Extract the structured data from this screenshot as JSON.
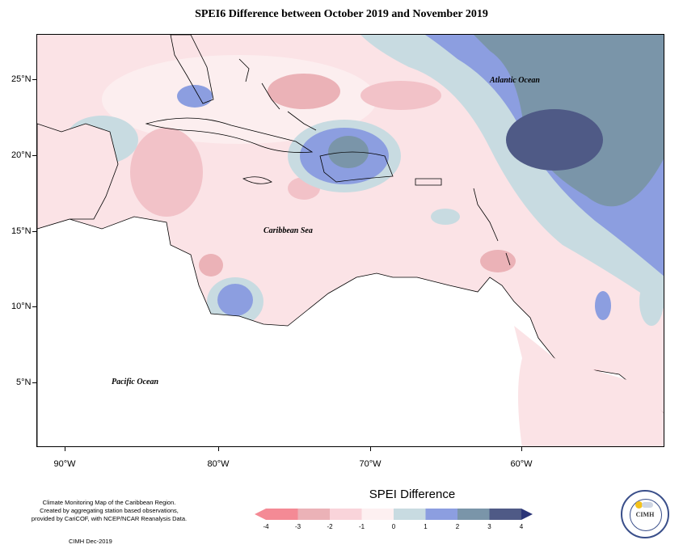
{
  "title": "SPEI6 Difference between October 2019 and November 2019",
  "axes": {
    "lat_labels": [
      "25°N",
      "20°N",
      "15°N",
      "10°N",
      "5°N"
    ],
    "lon_labels": [
      "90°W",
      "80°W",
      "70°W",
      "60°W"
    ]
  },
  "places": {
    "atlantic": "Atlantic Ocean",
    "caribbean": "Caribbean Sea",
    "pacific": "Pacific Ocean"
  },
  "credits": {
    "lines": [
      "Climate Monitoring Map of the Caribbean Region.",
      "Created by aggregating station based observations,",
      "provided by CariCOF, with NCEP/NCAR Reanalysis Data."
    ],
    "date": "CIMH Dec-2019"
  },
  "legend": {
    "title": "SPEI Difference",
    "ticks": [
      "-4",
      "-3",
      "-2",
      "-1",
      "0",
      "1",
      "2",
      "3",
      "4"
    ],
    "colors": [
      "#f48a95",
      "#ebb2b7",
      "#f9d4da",
      "#fdf0f1",
      "#c8dbe1",
      "#8c9ee0",
      "#7a95a9",
      "#4f5a86",
      "#2b3578"
    ]
  },
  "logo": {
    "abbr": "CIMH",
    "name": "logo-cimh"
  }
}
